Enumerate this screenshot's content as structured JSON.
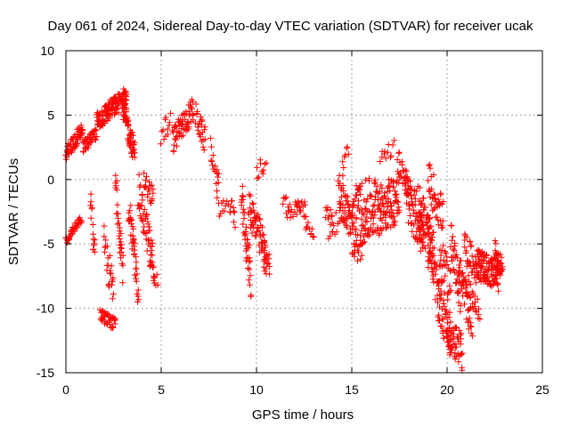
{
  "chart_data": {
    "type": "scatter",
    "title": "Day 061 of 2024, Sidereal Day-to-day VTEC variation (SDTVAR) for receiver ucak",
    "xlabel": "GPS time / hours",
    "ylabel": "SDTVAR / TECUs",
    "xlim": [
      0,
      25
    ],
    "ylim": [
      -15,
      10
    ],
    "xticks": [
      0,
      5,
      10,
      15,
      20,
      25
    ],
    "yticks": [
      -15,
      -10,
      -5,
      0,
      5,
      10
    ],
    "grid": true,
    "marker": "plus",
    "color": "#ff0000",
    "segments": [
      {
        "x0": 0.0,
        "x1": 0.9,
        "y0": 2.0,
        "y1": 4.0,
        "spread": 0.6,
        "n": 60
      },
      {
        "x0": 0.0,
        "x1": 0.8,
        "y0": -4.8,
        "y1": -3.0,
        "spread": 0.3,
        "n": 40
      },
      {
        "x0": 0.9,
        "x1": 1.6,
        "y0": 2.5,
        "y1": 3.5,
        "spread": 0.5,
        "n": 40
      },
      {
        "x0": 1.3,
        "x1": 1.5,
        "y0": -2.0,
        "y1": -5.5,
        "spread": 1.2,
        "n": 15
      },
      {
        "x0": 1.6,
        "x1": 3.2,
        "y0": 4.5,
        "y1": 6.5,
        "spread": 0.8,
        "n": 120
      },
      {
        "x0": 1.8,
        "x1": 2.6,
        "y0": -10.5,
        "y1": -11.3,
        "spread": 0.5,
        "n": 40
      },
      {
        "x0": 2.0,
        "x1": 2.5,
        "y0": -5.0,
        "y1": -9.0,
        "spread": 1.5,
        "n": 25
      },
      {
        "x0": 2.6,
        "x1": 3.0,
        "y0": 0.0,
        "y1": -7.0,
        "spread": 1.5,
        "n": 30
      },
      {
        "x0": 3.0,
        "x1": 3.6,
        "y0": 5.5,
        "y1": 2.0,
        "spread": 1.0,
        "n": 60
      },
      {
        "x0": 3.3,
        "x1": 3.8,
        "y0": -2.0,
        "y1": -8.5,
        "spread": 1.2,
        "n": 40
      },
      {
        "x0": 3.8,
        "x1": 4.6,
        "y0": -1.0,
        "y1": -6.5,
        "spread": 1.5,
        "n": 50
      },
      {
        "x0": 4.1,
        "x1": 4.6,
        "y0": 0.0,
        "y1": -1.5,
        "spread": 0.8,
        "n": 20
      },
      {
        "x0": 4.4,
        "x1": 4.8,
        "y0": -7.0,
        "y1": -8.0,
        "spread": 0.8,
        "n": 12
      },
      {
        "x0": 5.0,
        "x1": 5.5,
        "y0": 3.5,
        "y1": 4.5,
        "spread": 1.0,
        "n": 12
      },
      {
        "x0": 5.6,
        "x1": 6.7,
        "y0": 3.0,
        "y1": 5.5,
        "spread": 1.0,
        "n": 60
      },
      {
        "x0": 6.8,
        "x1": 7.3,
        "y0": 5.0,
        "y1": 3.0,
        "spread": 1.0,
        "n": 25
      },
      {
        "x0": 7.6,
        "x1": 8.0,
        "y0": 2.5,
        "y1": -0.5,
        "spread": 1.0,
        "n": 15
      },
      {
        "x0": 7.9,
        "x1": 8.5,
        "y0": -1.5,
        "y1": -2.8,
        "spread": 1.0,
        "n": 12
      },
      {
        "x0": 8.6,
        "x1": 8.9,
        "y0": -2.0,
        "y1": -3.0,
        "spread": 0.8,
        "n": 10
      },
      {
        "x0": 9.2,
        "x1": 9.7,
        "y0": -1.0,
        "y1": -8.0,
        "spread": 1.5,
        "n": 40
      },
      {
        "x0": 9.6,
        "x1": 10.5,
        "y0": -2.0,
        "y1": -6.0,
        "spread": 1.5,
        "n": 60
      },
      {
        "x0": 10.4,
        "x1": 10.7,
        "y0": -5.5,
        "y1": -6.8,
        "spread": 0.8,
        "n": 15
      },
      {
        "x0": 10.0,
        "x1": 10.5,
        "y0": 0.5,
        "y1": 1.5,
        "spread": 0.8,
        "n": 10
      },
      {
        "x0": 11.4,
        "x1": 11.9,
        "y0": -1.5,
        "y1": -3.0,
        "spread": 0.8,
        "n": 15
      },
      {
        "x0": 12.0,
        "x1": 12.6,
        "y0": -2.0,
        "y1": -2.5,
        "spread": 0.8,
        "n": 20
      },
      {
        "x0": 12.6,
        "x1": 13.0,
        "y0": -3.5,
        "y1": -4.0,
        "spread": 0.6,
        "n": 10
      },
      {
        "x0": 13.6,
        "x1": 14.0,
        "y0": -2.5,
        "y1": -3.0,
        "spread": 0.6,
        "n": 10
      },
      {
        "x0": 13.8,
        "x1": 14.4,
        "y0": -4.0,
        "y1": -3.0,
        "spread": 0.8,
        "n": 12
      },
      {
        "x0": 14.3,
        "x1": 15.0,
        "y0": -1.0,
        "y1": -3.5,
        "spread": 1.5,
        "n": 50
      },
      {
        "x0": 14.5,
        "x1": 14.8,
        "y0": 1.0,
        "y1": 2.0,
        "spread": 0.8,
        "n": 8
      },
      {
        "x0": 15.0,
        "x1": 16.5,
        "y0": -3.0,
        "y1": -2.0,
        "spread": 2.5,
        "n": 110
      },
      {
        "x0": 15.0,
        "x1": 15.5,
        "y0": -5.0,
        "y1": -6.0,
        "spread": 0.8,
        "n": 15
      },
      {
        "x0": 16.5,
        "x1": 17.5,
        "y0": -2.0,
        "y1": -1.5,
        "spread": 2.0,
        "n": 80
      },
      {
        "x0": 16.5,
        "x1": 17.2,
        "y0": 1.5,
        "y1": 2.5,
        "spread": 0.6,
        "n": 12
      },
      {
        "x0": 17.4,
        "x1": 18.0,
        "y0": 1.5,
        "y1": -0.5,
        "spread": 1.0,
        "n": 25
      },
      {
        "x0": 17.8,
        "x1": 18.7,
        "y0": -1.0,
        "y1": -4.0,
        "spread": 2.0,
        "n": 70
      },
      {
        "x0": 18.5,
        "x1": 19.3,
        "y0": -2.0,
        "y1": -6.0,
        "spread": 2.0,
        "n": 70
      },
      {
        "x0": 19.0,
        "x1": 19.8,
        "y0": 0.0,
        "y1": -3.0,
        "spread": 1.5,
        "n": 40
      },
      {
        "x0": 19.0,
        "x1": 19.6,
        "y0": -5.5,
        "y1": -9.0,
        "spread": 1.5,
        "n": 30
      },
      {
        "x0": 19.5,
        "x1": 20.2,
        "y0": -9.0,
        "y1": -12.0,
        "spread": 2.0,
        "n": 50
      },
      {
        "x0": 19.6,
        "x1": 20.2,
        "y0": -6.0,
        "y1": -8.0,
        "spread": 1.5,
        "n": 30
      },
      {
        "x0": 20.0,
        "x1": 20.8,
        "y0": -12.0,
        "y1": -13.5,
        "spread": 1.5,
        "n": 50
      },
      {
        "x0": 20.2,
        "x1": 20.7,
        "y0": -4.5,
        "y1": -9.0,
        "spread": 1.5,
        "n": 35
      },
      {
        "x0": 20.6,
        "x1": 21.3,
        "y0": -7.0,
        "y1": -11.0,
        "spread": 1.5,
        "n": 40
      },
      {
        "x0": 20.9,
        "x1": 21.5,
        "y0": -5.0,
        "y1": -7.0,
        "spread": 1.2,
        "n": 30
      },
      {
        "x0": 21.0,
        "x1": 21.7,
        "y0": -8.0,
        "y1": -10.5,
        "spread": 1.0,
        "n": 25
      },
      {
        "x0": 21.5,
        "x1": 22.7,
        "y0": -6.5,
        "y1": -7.5,
        "spread": 1.2,
        "n": 110
      },
      {
        "x0": 22.5,
        "x1": 22.9,
        "y0": -5.5,
        "y1": -7.0,
        "spread": 1.0,
        "n": 30
      }
    ]
  }
}
